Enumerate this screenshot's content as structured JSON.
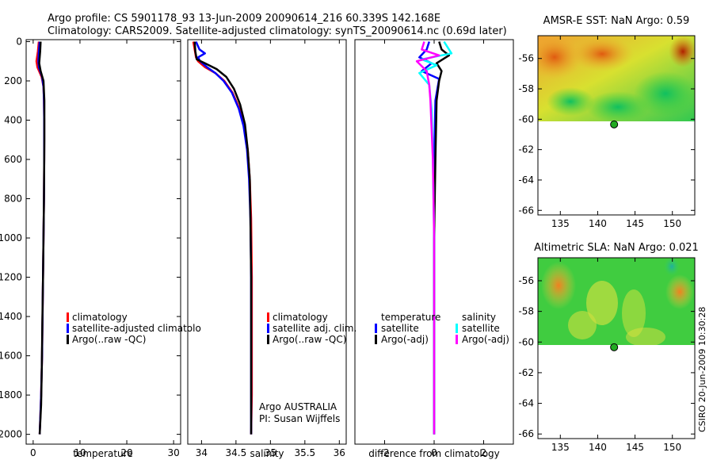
{
  "title": {
    "line1": "Argo profile: CS 5901178_93 13-Jun-2009 20090614_216 60.339S 142.168E",
    "line2": "Climatology: CARS2009. Satellite-adjusted climatology: synTS_20090614.nc (0.69d later)"
  },
  "footer": {
    "agency": "Argo AUSTRALIA",
    "pi": "PI: Susan Wijffels",
    "stamp": "CSIRO 20-Jun-2009 10:30:28"
  },
  "colors": {
    "climatology": "#ff0000",
    "satellite": "#0000ff",
    "argo": "#000000",
    "satellite_sal": "#00ffff",
    "argo_sal": "#ff00ff"
  },
  "chart_data": [
    {
      "type": "line",
      "id": "temperature",
      "xlabel": "temperature",
      "ylabel": "",
      "xlim": [
        -1.5,
        31.5
      ],
      "ylim": [
        2050,
        -10
      ],
      "xticks": [
        0,
        10,
        20,
        30
      ],
      "xtick_labels": [
        "0",
        "10",
        "20",
        "30"
      ],
      "yticks": [
        0,
        200,
        400,
        600,
        800,
        1000,
        1200,
        1400,
        1600,
        1800,
        2000
      ],
      "ytick_labels": [
        "0",
        "200",
        "400",
        "600",
        "800",
        "1000",
        "1200",
        "1400",
        "1600",
        "1800",
        "2000"
      ],
      "legend": [
        "climatology",
        "satellite-adjusted climatolo",
        "Argo(..raw -QC)"
      ],
      "series": [
        {
          "name": "climatology",
          "color": "#ff0000",
          "points": [
            [
              1.2,
              0
            ],
            [
              1.0,
              50
            ],
            [
              0.7,
              100
            ],
            [
              0.9,
              130
            ],
            [
              1.8,
              180
            ],
            [
              2.2,
              230
            ],
            [
              2.3,
              300
            ],
            [
              2.35,
              400
            ],
            [
              2.35,
              600
            ],
            [
              2.3,
              800
            ],
            [
              2.2,
              1000
            ],
            [
              2.1,
              1200
            ],
            [
              2.0,
              1400
            ],
            [
              1.9,
              1600
            ],
            [
              1.7,
              1800
            ],
            [
              1.4,
              2000
            ]
          ]
        },
        {
          "name": "satellite-adjusted climatolo",
          "color": "#0000ff",
          "points": [
            [
              1.4,
              0
            ],
            [
              1.2,
              50
            ],
            [
              1.1,
              100
            ],
            [
              1.2,
              130
            ],
            [
              1.9,
              180
            ],
            [
              2.2,
              230
            ],
            [
              2.3,
              300
            ],
            [
              2.35,
              400
            ],
            [
              2.35,
              600
            ],
            [
              2.3,
              800
            ],
            [
              2.2,
              1000
            ],
            [
              2.1,
              1200
            ],
            [
              2.0,
              1400
            ],
            [
              1.9,
              1600
            ],
            [
              1.7,
              1800
            ],
            [
              1.4,
              2000
            ]
          ]
        },
        {
          "name": "Argo(..raw -QC)",
          "color": "#000000",
          "points": [
            [
              1.6,
              0
            ],
            [
              1.5,
              50
            ],
            [
              1.3,
              110
            ],
            [
              1.6,
              150
            ],
            [
              2.2,
              200
            ],
            [
              2.4,
              300
            ],
            [
              2.4,
              500
            ],
            [
              2.3,
              800
            ],
            [
              2.2,
              1000
            ],
            [
              2.1,
              1200
            ],
            [
              1.95,
              1450
            ],
            [
              1.85,
              1650
            ],
            [
              1.7,
              1850
            ],
            [
              1.4,
              2000
            ]
          ]
        }
      ]
    },
    {
      "type": "line",
      "id": "salinity",
      "xlabel": "salinity",
      "ylabel": "",
      "xlim": [
        33.8,
        36.1
      ],
      "ylim": [
        2050,
        -10
      ],
      "xticks": [
        34,
        34.5,
        35,
        35.5,
        36
      ],
      "xtick_labels": [
        "34",
        "34.5",
        "35",
        "35.5",
        "36"
      ],
      "yticks": [],
      "ytick_labels": [],
      "legend": [
        "climatology",
        "satellite adj. clim.",
        "Argo(..raw -QC)"
      ],
      "series": [
        {
          "name": "climatology",
          "color": "#ff0000",
          "points": [
            [
              33.88,
              0
            ],
            [
              33.9,
              40
            ],
            [
              33.92,
              80
            ],
            [
              33.95,
              100
            ],
            [
              34.05,
              130
            ],
            [
              34.2,
              160
            ],
            [
              34.33,
              200
            ],
            [
              34.45,
              260
            ],
            [
              34.55,
              340
            ],
            [
              34.62,
              430
            ],
            [
              34.67,
              550
            ],
            [
              34.7,
              700
            ],
            [
              34.72,
              900
            ],
            [
              34.73,
              1200
            ],
            [
              34.73,
              1500
            ],
            [
              34.73,
              1800
            ],
            [
              34.72,
              2000
            ]
          ]
        },
        {
          "name": "satellite adj. clim.",
          "color": "#0000ff",
          "points": [
            [
              33.92,
              0
            ],
            [
              33.97,
              40
            ],
            [
              34.05,
              60
            ],
            [
              33.95,
              80
            ],
            [
              33.98,
              100
            ],
            [
              34.08,
              130
            ],
            [
              34.2,
              160
            ],
            [
              34.32,
              200
            ],
            [
              34.44,
              260
            ],
            [
              34.54,
              340
            ],
            [
              34.61,
              430
            ],
            [
              34.66,
              550
            ],
            [
              34.69,
              700
            ],
            [
              34.71,
              900
            ],
            [
              34.72,
              1200
            ],
            [
              34.72,
              1500
            ],
            [
              34.72,
              1800
            ],
            [
              34.72,
              2000
            ]
          ]
        },
        {
          "name": "Argo(..raw -QC)",
          "color": "#000000",
          "points": [
            [
              33.9,
              0
            ],
            [
              33.91,
              50
            ],
            [
              33.93,
              90
            ],
            [
              34.05,
              110
            ],
            [
              34.22,
              140
            ],
            [
              34.36,
              180
            ],
            [
              34.47,
              240
            ],
            [
              34.56,
              320
            ],
            [
              34.63,
              420
            ],
            [
              34.67,
              550
            ],
            [
              34.7,
              700
            ],
            [
              34.71,
              900
            ],
            [
              34.72,
              1200
            ],
            [
              34.72,
              1500
            ],
            [
              34.72,
              1800
            ],
            [
              34.72,
              2000
            ]
          ]
        }
      ]
    },
    {
      "type": "line",
      "id": "difference",
      "xlabel": "difference from climatology",
      "ylabel": "",
      "xlim": [
        -3.2,
        3.2
      ],
      "ylim": [
        2050,
        -10
      ],
      "xticks": [
        -2,
        0,
        2
      ],
      "xtick_labels": [
        "-2",
        "0",
        "2"
      ],
      "yticks": [],
      "ytick_labels": [],
      "legend_temperature_title": "temperature",
      "legend_salinity_title": "salinity",
      "legend": [
        "satellite",
        "Argo(-adj)",
        "satellite",
        "Argo(-adj)"
      ],
      "series": [
        {
          "name": "temperature satellite",
          "color": "#0000ff",
          "points": [
            [
              -0.2,
              0
            ],
            [
              -0.3,
              40
            ],
            [
              -0.6,
              80
            ],
            [
              -0.1,
              110
            ],
            [
              -0.5,
              150
            ],
            [
              0.2,
              190
            ],
            [
              0.05,
              300
            ],
            [
              0,
              600
            ],
            [
              0,
              1000
            ],
            [
              0,
              1500
            ],
            [
              0,
              2000
            ]
          ]
        },
        {
          "name": "temperature Argo(-adj)",
          "color": "#000000",
          "points": [
            [
              0.2,
              0
            ],
            [
              0.3,
              40
            ],
            [
              0.6,
              70
            ],
            [
              0.1,
              110
            ],
            [
              0.3,
              150
            ],
            [
              0.2,
              200
            ],
            [
              0.1,
              300
            ],
            [
              0.05,
              600
            ],
            [
              0,
              1000
            ],
            [
              0,
              1500
            ],
            [
              0,
              2000
            ]
          ]
        },
        {
          "name": "salinity satellite",
          "color": "#00ffff",
          "points": [
            [
              0.4,
              0
            ],
            [
              0.7,
              60
            ],
            [
              -0.5,
              90
            ],
            [
              0.1,
              120
            ],
            [
              -0.6,
              160
            ],
            [
              -0.2,
              220
            ],
            [
              -0.1,
              350
            ],
            [
              -0.05,
              600
            ],
            [
              0,
              1000
            ],
            [
              0,
              1500
            ],
            [
              0,
              2000
            ]
          ]
        },
        {
          "name": "salinity Argo(-adj)",
          "color": "#ff00ff",
          "points": [
            [
              -0.4,
              0
            ],
            [
              -0.5,
              40
            ],
            [
              0.2,
              70
            ],
            [
              -0.7,
              100
            ],
            [
              -0.3,
              150
            ],
            [
              -0.2,
              220
            ],
            [
              -0.15,
              300
            ],
            [
              -0.05,
              600
            ],
            [
              0,
              1000
            ],
            [
              0,
              1500
            ],
            [
              0,
              2000
            ]
          ]
        }
      ]
    },
    {
      "type": "heatmap",
      "id": "sst_map",
      "title": "AMSR-E SST: NaN Argo: 0.59",
      "xlim": [
        132,
        153
      ],
      "ylim": [
        -66.3,
        -54.5
      ],
      "xticks": [
        135,
        140,
        145,
        150
      ],
      "xtick_labels": [
        "135",
        "140",
        "145",
        "150"
      ],
      "yticks": [
        -56,
        -58,
        -60,
        -62,
        -64,
        -66
      ],
      "ytick_labels": [
        "-56",
        "-58",
        "-60",
        "-62",
        "-64",
        "-66"
      ],
      "data_extent_lat": [
        -60.1,
        -54.5
      ],
      "marker": {
        "lon": 142.2,
        "lat": -60.34
      }
    },
    {
      "type": "heatmap",
      "id": "sla_map",
      "title": "Altimetric SLA: NaN Argo: 0.021",
      "xlim": [
        132,
        153
      ],
      "ylim": [
        -66.3,
        -54.5
      ],
      "xticks": [
        135,
        140,
        145,
        150
      ],
      "xtick_labels": [
        "135",
        "140",
        "145",
        "150"
      ],
      "yticks": [
        -56,
        -58,
        -60,
        -62,
        -64,
        -66
      ],
      "ytick_labels": [
        "-56",
        "-58",
        "-60",
        "-62",
        "-64",
        "-66"
      ],
      "data_extent_lat": [
        -60.1,
        -54.5
      ],
      "marker": {
        "lon": 142.2,
        "lat": -60.34
      }
    }
  ]
}
